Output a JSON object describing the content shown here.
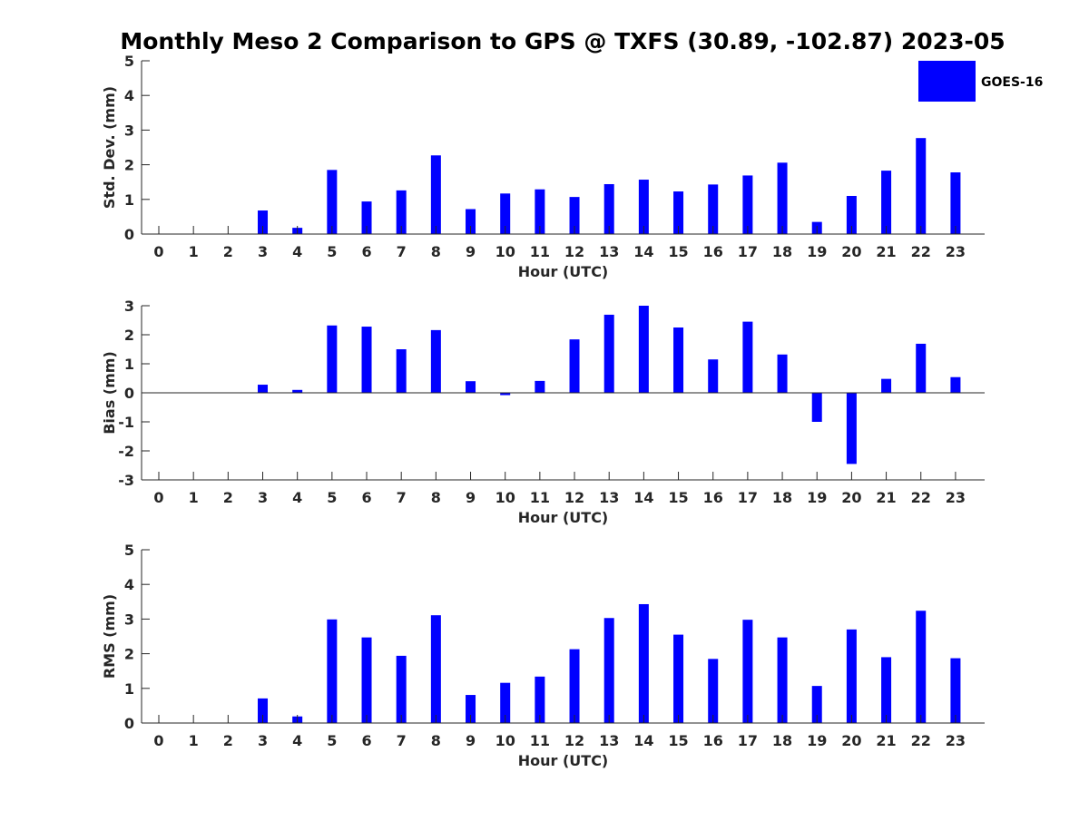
{
  "title": "Monthly Meso 2 Comparison to GPS @ TXFS (30.89, -102.87) 2023-05",
  "legend": {
    "label": "GOES-16",
    "color": "#0000ff",
    "placement": "top-right"
  },
  "bar_color": "#0000ff",
  "chart_data": [
    {
      "type": "bar",
      "name": "std-dev",
      "xlabel": "Hour (UTC)",
      "ylabel": "Std. Dev. (mm)",
      "ylim": [
        0,
        5
      ],
      "yticks": [
        0,
        1,
        2,
        3,
        4,
        5
      ],
      "categories": [
        "0",
        "1",
        "2",
        "3",
        "4",
        "5",
        "6",
        "7",
        "8",
        "9",
        "10",
        "11",
        "12",
        "13",
        "14",
        "15",
        "16",
        "17",
        "18",
        "19",
        "20",
        "21",
        "22",
        "23"
      ],
      "series": [
        {
          "name": "GOES-16",
          "values": [
            0,
            0,
            0,
            0.68,
            0.18,
            1.85,
            0.94,
            1.26,
            2.27,
            0.72,
            1.17,
            1.29,
            1.07,
            1.44,
            1.57,
            1.23,
            1.43,
            1.69,
            2.06,
            0.35,
            1.1,
            1.83,
            2.77,
            1.78
          ]
        }
      ],
      "grid": false
    },
    {
      "type": "bar",
      "name": "bias",
      "xlabel": "Hour (UTC)",
      "ylabel": "Bias (mm)",
      "ylim": [
        -3,
        3
      ],
      "yticks": [
        -3,
        -2,
        -1,
        0,
        1,
        2,
        3
      ],
      "categories": [
        "0",
        "1",
        "2",
        "3",
        "4",
        "5",
        "6",
        "7",
        "8",
        "9",
        "10",
        "11",
        "12",
        "13",
        "14",
        "15",
        "16",
        "17",
        "18",
        "19",
        "20",
        "21",
        "22",
        "23"
      ],
      "series": [
        {
          "name": "GOES-16",
          "values": [
            0,
            0,
            0,
            0.28,
            0.1,
            2.32,
            2.28,
            1.5,
            2.16,
            0.4,
            -0.08,
            0.41,
            1.84,
            2.69,
            3.0,
            2.25,
            1.15,
            2.45,
            1.32,
            -1.0,
            -2.45,
            0.48,
            1.69,
            0.54
          ]
        }
      ],
      "grid": false
    },
    {
      "type": "bar",
      "name": "rms",
      "xlabel": "Hour (UTC)",
      "ylabel": "RMS (mm)",
      "ylim": [
        0,
        5
      ],
      "yticks": [
        0,
        1,
        2,
        3,
        4,
        5
      ],
      "categories": [
        "0",
        "1",
        "2",
        "3",
        "4",
        "5",
        "6",
        "7",
        "8",
        "9",
        "10",
        "11",
        "12",
        "13",
        "14",
        "15",
        "16",
        "17",
        "18",
        "19",
        "20",
        "21",
        "22",
        "23"
      ],
      "series": [
        {
          "name": "GOES-16",
          "values": [
            0,
            0,
            0,
            0.71,
            0.19,
            2.99,
            2.47,
            1.94,
            3.11,
            0.81,
            1.16,
            1.34,
            2.13,
            3.03,
            3.43,
            2.55,
            1.85,
            2.98,
            2.47,
            1.07,
            2.7,
            1.9,
            3.24,
            1.87
          ]
        }
      ],
      "grid": false
    }
  ]
}
